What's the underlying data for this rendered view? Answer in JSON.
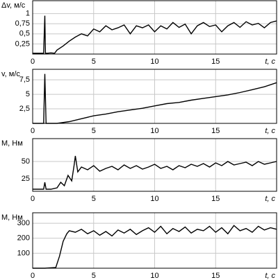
{
  "chart_data": [
    {
      "type": "line",
      "y_label": "Δv, м/с",
      "x_label": "t, c",
      "color": "#000000",
      "grid": true,
      "xlim": [
        0,
        20
      ],
      "xticks": [
        0,
        5,
        10,
        15
      ],
      "ylim": [
        0,
        1.32
      ],
      "yticks": [
        {
          "value": 0.25,
          "label": "0,25"
        },
        {
          "value": 0.5,
          "label": "0,5"
        },
        {
          "value": 0.75,
          "label": "0,75"
        },
        1
      ],
      "x": [
        0,
        0.5,
        0.9,
        1.0,
        1.05,
        1.2,
        1.5,
        1.8,
        2,
        2.5,
        3,
        3.5,
        4,
        4.5,
        5,
        5.5,
        6,
        6.5,
        7,
        7.5,
        8,
        8.5,
        9,
        9.5,
        10,
        10.5,
        11,
        11.5,
        12,
        12.5,
        13,
        13.5,
        14,
        14.5,
        15,
        15.5,
        16,
        16.5,
        17,
        17.5,
        18,
        18.5,
        19,
        19.5,
        20
      ],
      "values": [
        0.02,
        0.02,
        0.02,
        0.95,
        0.02,
        0.02,
        0.03,
        0.02,
        0.1,
        0.2,
        0.32,
        0.42,
        0.5,
        0.45,
        0.62,
        0.55,
        0.7,
        0.6,
        0.65,
        0.72,
        0.5,
        0.7,
        0.65,
        0.72,
        0.55,
        0.7,
        0.62,
        0.78,
        0.66,
        0.74,
        0.5,
        0.7,
        0.78,
        0.68,
        0.72,
        0.55,
        0.7,
        0.78,
        0.66,
        0.8,
        0.72,
        0.76,
        0.65,
        0.78,
        0.82
      ]
    },
    {
      "type": "line",
      "y_label": "v, м/с",
      "x_label": "t, c",
      "color": "#000000",
      "grid": true,
      "xlim": [
        0,
        20
      ],
      "xticks": [
        0,
        5,
        10,
        15
      ],
      "ylim": [
        0,
        9.3
      ],
      "yticks": [
        {
          "value": 2.5,
          "label": "2,5"
        },
        5,
        {
          "value": 7.5,
          "label": "7,5"
        }
      ],
      "x": [
        0,
        0.5,
        0.9,
        1.0,
        1.1,
        1.5,
        2,
        3,
        4,
        5,
        6,
        7,
        8,
        9,
        10,
        11,
        12,
        13,
        14,
        15,
        16,
        17,
        18,
        19,
        20
      ],
      "values": [
        0,
        0,
        0,
        8.5,
        0,
        0,
        0,
        0.3,
        0.8,
        1.3,
        1.6,
        2,
        2.3,
        2.6,
        3,
        3.4,
        3.6,
        4,
        4.3,
        4.6,
        4.9,
        5.3,
        5.8,
        6.3,
        7
      ]
    },
    {
      "type": "line",
      "y_label": "M, Нм",
      "x_label": "t, c",
      "color": "#000000",
      "grid": true,
      "xlim": [
        0,
        20
      ],
      "xticks": [
        0,
        5,
        10,
        15
      ],
      "ylim": [
        7,
        83
      ],
      "yticks": [
        25,
        50
      ],
      "x": [
        0,
        0.9,
        1.0,
        1.1,
        1.5,
        2,
        2.3,
        2.6,
        2.9,
        3.2,
        3.4,
        3.5,
        3.7,
        4,
        4.5,
        5,
        5.5,
        6,
        6.5,
        7,
        7.5,
        8,
        8.5,
        9,
        9.5,
        10,
        10.5,
        11,
        11.5,
        12,
        12.5,
        13,
        13.5,
        14,
        14.5,
        15,
        15.5,
        16,
        16.5,
        17,
        17.5,
        18,
        18.5,
        19,
        19.5,
        20
      ],
      "values": [
        10,
        10,
        20,
        10,
        10,
        12,
        20,
        15,
        30,
        22,
        45,
        58,
        35,
        42,
        38,
        44,
        36,
        40,
        43,
        38,
        45,
        40,
        44,
        39,
        42,
        46,
        40,
        43,
        38,
        44,
        41,
        46,
        43,
        47,
        42,
        48,
        44,
        50,
        45,
        47,
        49,
        44,
        50,
        46,
        48,
        50
      ]
    },
    {
      "type": "line",
      "y_label": "M, Нм",
      "x_label": "t, c",
      "color": "#000000",
      "grid": true,
      "xlim": [
        0,
        20
      ],
      "xticks": [
        0,
        5,
        10,
        15
      ],
      "ylim": [
        0,
        370
      ],
      "yticks": [
        100,
        200,
        300
      ],
      "x": [
        0,
        1,
        1.9,
        2.2,
        2.5,
        2.8,
        3,
        3.5,
        4,
        4.5,
        5,
        5.5,
        6,
        6.5,
        7,
        7.5,
        8,
        8.5,
        9,
        9.5,
        10,
        10.5,
        11,
        11.5,
        12,
        12.5,
        13,
        13.5,
        14,
        14.5,
        15,
        15.5,
        16,
        16.5,
        17,
        17.5,
        18,
        18.5,
        19,
        19.5,
        20
      ],
      "values": [
        0,
        0,
        5,
        80,
        180,
        230,
        250,
        240,
        260,
        230,
        250,
        220,
        245,
        215,
        255,
        235,
        260,
        225,
        250,
        270,
        240,
        280,
        230,
        265,
        245,
        275,
        235,
        260,
        250,
        280,
        240,
        270,
        230,
        285,
        250,
        265,
        240,
        280,
        255,
        270,
        260
      ]
    }
  ]
}
